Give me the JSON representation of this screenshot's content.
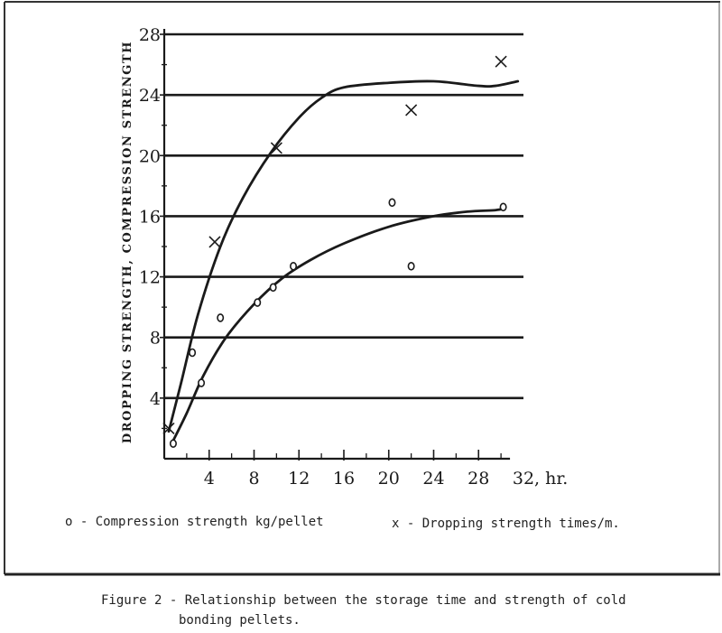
{
  "chart_data": {
    "type": "scatter",
    "ylabel": "DROPPING STRENGTH, COMPRESSION STRENGTH",
    "xlabel_unit": ", hr.",
    "xlim": [
      0,
      32
    ],
    "ylim": [
      0,
      28
    ],
    "x_ticks": [
      4,
      8,
      12,
      16,
      20,
      24,
      28,
      32
    ],
    "x_tick_labels": [
      "4",
      "8",
      "12",
      "16",
      "20",
      "24",
      "28",
      "32"
    ],
    "y_ticks": [
      4,
      8,
      12,
      16,
      20,
      24,
      28
    ],
    "y_tick_labels": [
      "4",
      "8",
      "12",
      "16",
      "20",
      "24",
      "28"
    ],
    "grid": "horizontal",
    "series": [
      {
        "name": "Compression strength kg/pellet",
        "marker": "o",
        "points": [
          {
            "x": 0.8,
            "y": 1.0
          },
          {
            "x": 2.5,
            "y": 7.0
          },
          {
            "x": 3.3,
            "y": 5.0
          },
          {
            "x": 5.0,
            "y": 9.3
          },
          {
            "x": 8.3,
            "y": 10.3
          },
          {
            "x": 9.7,
            "y": 11.3
          },
          {
            "x": 11.5,
            "y": 12.7
          },
          {
            "x": 20.3,
            "y": 16.9
          },
          {
            "x": 22.0,
            "y": 12.7
          },
          {
            "x": 30.2,
            "y": 16.6
          }
        ],
        "curve": [
          [
            0.8,
            1.2
          ],
          [
            2.0,
            3.0
          ],
          [
            3.5,
            5.5
          ],
          [
            5.5,
            8.0
          ],
          [
            8.0,
            10.2
          ],
          [
            10.5,
            11.9
          ],
          [
            13.0,
            13.1
          ],
          [
            16.0,
            14.2
          ],
          [
            20.0,
            15.3
          ],
          [
            24.0,
            16.0
          ],
          [
            27.0,
            16.3
          ],
          [
            29.5,
            16.4
          ],
          [
            30.2,
            16.5
          ]
        ]
      },
      {
        "name": "Dropping strength times/m.",
        "marker": "x",
        "points": [
          {
            "x": 0.4,
            "y": 2.0
          },
          {
            "x": 4.5,
            "y": 14.3
          },
          {
            "x": 10.0,
            "y": 20.5
          },
          {
            "x": 22.0,
            "y": 23.0
          },
          {
            "x": 30.0,
            "y": 26.2
          }
        ],
        "curve": [
          [
            0.4,
            1.8
          ],
          [
            1.5,
            5.0
          ],
          [
            3.0,
            9.5
          ],
          [
            5.0,
            14.0
          ],
          [
            7.0,
            17.2
          ],
          [
            9.5,
            20.2
          ],
          [
            12.0,
            22.5
          ],
          [
            14.0,
            23.8
          ],
          [
            16.0,
            24.5
          ],
          [
            20.0,
            24.8
          ],
          [
            24.0,
            24.9
          ],
          [
            28.0,
            24.6
          ],
          [
            29.5,
            24.6
          ],
          [
            31.5,
            24.9
          ]
        ]
      }
    ],
    "legend": [
      {
        "symbol": "o",
        "text": "o - Compression strength kg/pellet"
      },
      {
        "symbol": "x",
        "text": "x - Dropping strength times/m."
      }
    ]
  },
  "caption": {
    "line1": "Figure 2 - Relationship between the storage time and strength of cold",
    "line2": "bonding pellets."
  },
  "colors": {
    "ink": "#1a1a1a",
    "background": "#ffffff"
  }
}
